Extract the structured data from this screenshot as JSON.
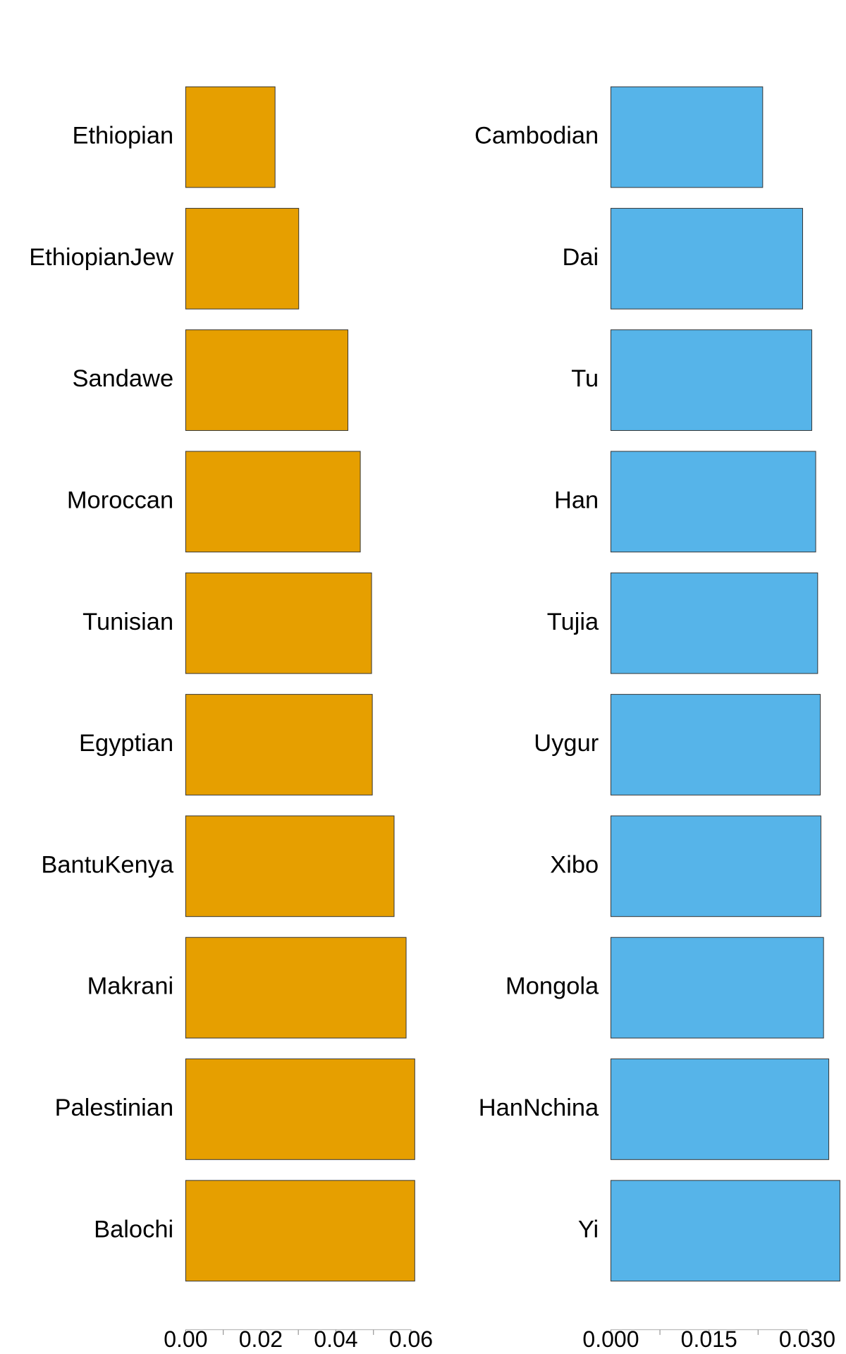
{
  "chart_data": [
    {
      "type": "barh",
      "color": "#E69F00",
      "categories": [
        "Ethiopian",
        "EthiopianJew",
        "Sandawe",
        "Moroccan",
        "Tunisian",
        "Egyptian",
        "BantuKenya",
        "Makrani",
        "Palestinian",
        "Balochi"
      ],
      "values": [
        0.0238,
        0.0301,
        0.0432,
        0.0465,
        0.0495,
        0.0497,
        0.0555,
        0.0587,
        0.061,
        0.061
      ],
      "xlim": [
        0,
        0.061
      ],
      "xticks": [
        {
          "value": 0,
          "label": "0.00"
        },
        0.02,
        0.04,
        0.06
      ],
      "minor_xticks": [
        0.01,
        0.03,
        0.05
      ]
    },
    {
      "type": "barh",
      "color": "#56B4E9",
      "categories": [
        "Cambodian",
        "Dai",
        "Tu",
        "Han",
        "Tujia",
        "Uygur",
        "Xibo",
        "Mongola",
        "HanNchina",
        "Yi"
      ],
      "values": [
        0.0232,
        0.0293,
        0.0307,
        0.0313,
        0.0316,
        0.032,
        0.0321,
        0.0325,
        0.0333,
        0.035
      ],
      "xlim": [
        0,
        0.035
      ],
      "xticks": [
        {
          "value": 0,
          "label": "0.000"
        },
        0.015,
        {
          "value": 0.03,
          "label": "0.030"
        }
      ],
      "minor_xticks": [
        0.0075,
        0.0225
      ]
    }
  ]
}
